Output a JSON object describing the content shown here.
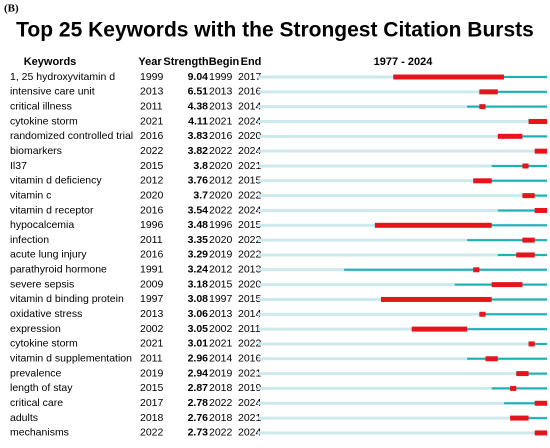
{
  "panel_label": "(B)",
  "title": "Top 25 Keywords with the Strongest Citation Bursts",
  "columns": [
    "Keywords",
    "Year",
    "Strength",
    "Begin",
    "End"
  ],
  "timeline": {
    "label": "1977 - 2024",
    "range": [
      1977,
      2024
    ]
  },
  "rows": [
    [
      "1, 25 hydroxyvitamin d",
      1999,
      9.04,
      1999,
      2017
    ],
    [
      "intensive care unit",
      2013,
      6.51,
      2013,
      2016
    ],
    [
      "critical illness",
      2011,
      4.38,
      2013,
      2014
    ],
    [
      "cytokine storm",
      2021,
      4.11,
      2021,
      2024
    ],
    [
      "randomized controlled trial",
      2016,
      3.83,
      2016,
      2020
    ],
    [
      "biomarkers",
      2022,
      3.82,
      2022,
      2024
    ],
    [
      "Il37",
      2015,
      3.8,
      2020,
      2021
    ],
    [
      "vitamin d deficiency",
      2012,
      3.76,
      2012,
      2015
    ],
    [
      "vitamin c",
      2020,
      3.7,
      2020,
      2022
    ],
    [
      "vitamin d receptor",
      2016,
      3.54,
      2022,
      2024
    ],
    [
      "hypocalcemia",
      1996,
      3.48,
      1996,
      2015
    ],
    [
      "infection",
      2011,
      3.35,
      2020,
      2022
    ],
    [
      "acute lung injury",
      2016,
      3.29,
      2019,
      2022
    ],
    [
      "parathyroid hormone",
      1991,
      3.24,
      2012,
      2013
    ],
    [
      "severe sepsis",
      2009,
      3.18,
      2015,
      2020
    ],
    [
      "vitamin d binding protein",
      1997,
      3.08,
      1997,
      2015
    ],
    [
      "oxidative stress",
      2013,
      3.06,
      2013,
      2014
    ],
    [
      "expression",
      2002,
      3.05,
      2002,
      2011
    ],
    [
      "cytokine storm",
      2021,
      3.01,
      2021,
      2022
    ],
    [
      "vitamin d supplementation",
      2011,
      2.96,
      2014,
      2016
    ],
    [
      "prevalence",
      2019,
      2.94,
      2019,
      2021
    ],
    [
      "length of stay",
      2015,
      2.87,
      2018,
      2019
    ],
    [
      "critical care",
      2017,
      2.78,
      2022,
      2024
    ],
    [
      "adults",
      2018,
      2.76,
      2018,
      2021
    ],
    [
      "mechanisms",
      2022,
      2.73,
      2022,
      2024
    ]
  ]
}
